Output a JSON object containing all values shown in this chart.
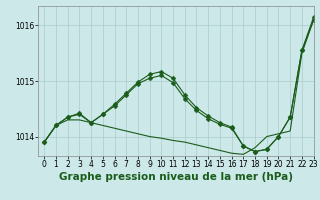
{
  "title": "Graphe pression niveau de la mer (hPa)",
  "background_color": "#cce8e8",
  "grid_color": "#aacccc",
  "line_color": "#1a5c1a",
  "xlim": [
    -0.5,
    23
  ],
  "ylim": [
    1013.65,
    1016.35
  ],
  "yticks": [
    1014,
    1015,
    1016
  ],
  "xticks": [
    0,
    1,
    2,
    3,
    4,
    5,
    6,
    7,
    8,
    9,
    10,
    11,
    12,
    13,
    14,
    15,
    16,
    17,
    18,
    19,
    20,
    21,
    22,
    23
  ],
  "series": [
    {
      "y": [
        1013.9,
        1014.2,
        1014.3,
        1014.3,
        1014.25,
        1014.2,
        1014.15,
        1014.1,
        1014.05,
        1014.0,
        1013.97,
        1013.93,
        1013.9,
        1013.85,
        1013.8,
        1013.75,
        1013.7,
        1013.68,
        1013.8,
        1014.0,
        1014.05,
        1014.1,
        1015.5,
        1016.1
      ],
      "markers": false
    },
    {
      "y": [
        1013.9,
        1014.2,
        1014.35,
        1014.4,
        1014.25,
        1014.4,
        1014.55,
        1014.75,
        1014.95,
        1015.05,
        1015.1,
        1014.97,
        1014.68,
        1014.47,
        1014.32,
        1014.22,
        1014.15,
        1013.83,
        1013.73,
        1013.77,
        1014.0,
        1014.35,
        1015.55,
        1016.1
      ],
      "markers": true
    },
    {
      "y": [
        1013.9,
        1014.2,
        1014.35,
        1014.42,
        1014.25,
        1014.4,
        1014.58,
        1014.78,
        1014.98,
        1015.12,
        1015.17,
        1015.05,
        1014.75,
        1014.52,
        1014.37,
        1014.25,
        1014.17,
        1013.83,
        1013.73,
        1013.77,
        1014.0,
        1014.35,
        1015.55,
        1016.15
      ],
      "markers": true
    }
  ],
  "marker_style": "D",
  "marker_size": 2.5,
  "tick_fontsize": 5.5,
  "title_fontsize": 7.5,
  "title_fontweight": "bold",
  "title_color": "#1a5c1a",
  "line_width": 0.8
}
